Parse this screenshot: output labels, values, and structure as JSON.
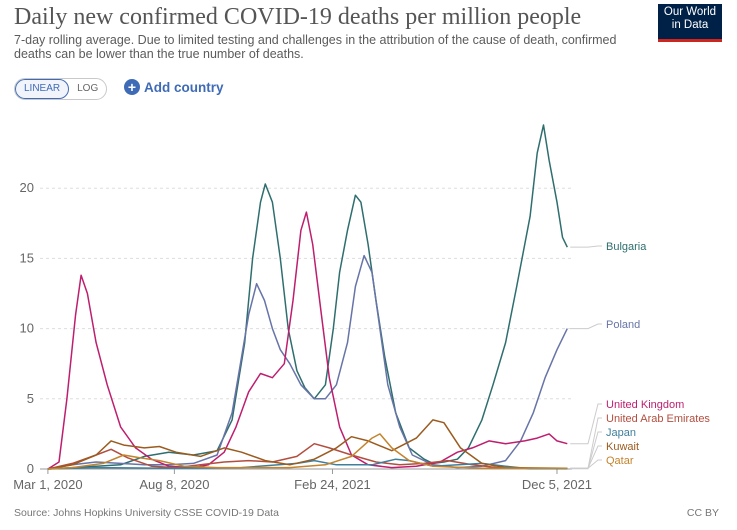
{
  "header": {
    "title": "Daily new confirmed COVID-19 deaths per million people",
    "subtitle": "7-day rolling average. Due to limited testing and challenges in the attribution of the cause of death, confirmed deaths can be lower than the true number of deaths.",
    "logo_line1": "Our World",
    "logo_line2": "in Data"
  },
  "controls": {
    "linear_label": "LINEAR",
    "log_label": "LOG",
    "add_country_label": "Add country"
  },
  "footer": {
    "source": "Source: Johns Hopkins University CSSE COVID-19 Data",
    "license": "CC BY"
  },
  "chart_data": {
    "type": "line",
    "scale": "linear",
    "grid": "horizontal dashed",
    "ylim": [
      0,
      25
    ],
    "xlim": [
      "2020-02-20",
      "2021-12-24"
    ],
    "y_ticks": [
      0,
      5,
      10,
      15,
      20
    ],
    "x_ticks": [
      {
        "date": "2020-03-01",
        "label": "Mar 1, 2020"
      },
      {
        "date": "2020-08-08",
        "label": "Aug 8, 2020"
      },
      {
        "date": "2021-02-24",
        "label": "Feb 24, 2021"
      },
      {
        "date": "2021-12-05",
        "label": "Dec 5, 2021"
      }
    ],
    "series": [
      {
        "name": "Bulgaria",
        "color": "#2f6e6e",
        "points": [
          [
            "2020-03-01",
            0
          ],
          [
            "2020-04-01",
            0.1
          ],
          [
            "2020-05-01",
            0.2
          ],
          [
            "2020-06-01",
            0.3
          ],
          [
            "2020-07-01",
            0.9
          ],
          [
            "2020-08-01",
            1.2
          ],
          [
            "2020-09-01",
            1.0
          ],
          [
            "2020-10-01",
            1.3
          ],
          [
            "2020-10-20",
            3.5
          ],
          [
            "2020-11-05",
            9
          ],
          [
            "2020-11-15",
            15
          ],
          [
            "2020-11-25",
            19
          ],
          [
            "2020-12-01",
            20.3
          ],
          [
            "2020-12-10",
            19
          ],
          [
            "2020-12-20",
            15
          ],
          [
            "2020-12-30",
            10
          ],
          [
            "2021-01-10",
            7
          ],
          [
            "2021-01-20",
            5.8
          ],
          [
            "2021-02-01",
            5.0
          ],
          [
            "2021-02-15",
            6
          ],
          [
            "2021-02-25",
            10
          ],
          [
            "2021-03-05",
            14
          ],
          [
            "2021-03-15",
            17
          ],
          [
            "2021-03-25",
            19.5
          ],
          [
            "2021-04-01",
            19
          ],
          [
            "2021-04-10",
            16
          ],
          [
            "2021-04-20",
            12
          ],
          [
            "2021-05-01",
            8
          ],
          [
            "2021-05-15",
            4
          ],
          [
            "2021-06-01",
            1.5
          ],
          [
            "2021-06-20",
            0.7
          ],
          [
            "2021-07-01",
            0.4
          ],
          [
            "2021-07-15",
            0.5
          ],
          [
            "2021-08-01",
            0.7
          ],
          [
            "2021-08-15",
            1.5
          ],
          [
            "2021-09-01",
            3.5
          ],
          [
            "2021-09-15",
            6
          ],
          [
            "2021-10-01",
            9
          ],
          [
            "2021-10-15",
            13
          ],
          [
            "2021-11-01",
            18
          ],
          [
            "2021-11-10",
            22.5
          ],
          [
            "2021-11-18",
            24.5
          ],
          [
            "2021-11-25",
            22
          ],
          [
            "2021-12-05",
            19
          ],
          [
            "2021-12-12",
            16.5
          ],
          [
            "2021-12-18",
            15.8
          ]
        ]
      },
      {
        "name": "Poland",
        "color": "#6774a8",
        "points": [
          [
            "2020-03-01",
            0
          ],
          [
            "2020-04-01",
            0.3
          ],
          [
            "2020-05-01",
            0.5
          ],
          [
            "2020-06-01",
            0.4
          ],
          [
            "2020-07-01",
            0.3
          ],
          [
            "2020-08-01",
            0.3
          ],
          [
            "2020-09-01",
            0.4
          ],
          [
            "2020-10-01",
            1.0
          ],
          [
            "2020-10-20",
            4
          ],
          [
            "2020-11-01",
            8
          ],
          [
            "2020-11-10",
            11
          ],
          [
            "2020-11-20",
            13.2
          ],
          [
            "2020-11-30",
            12
          ],
          [
            "2020-12-10",
            10
          ],
          [
            "2020-12-20",
            8.5
          ],
          [
            "2021-01-01",
            7.5
          ],
          [
            "2021-01-15",
            6
          ],
          [
            "2021-02-01",
            5
          ],
          [
            "2021-02-15",
            5
          ],
          [
            "2021-03-01",
            6
          ],
          [
            "2021-03-15",
            9
          ],
          [
            "2021-03-25",
            13
          ],
          [
            "2021-04-05",
            15.2
          ],
          [
            "2021-04-15",
            14
          ],
          [
            "2021-04-25",
            10
          ],
          [
            "2021-05-05",
            6
          ],
          [
            "2021-05-20",
            3
          ],
          [
            "2021-06-05",
            1
          ],
          [
            "2021-07-01",
            0.3
          ],
          [
            "2021-08-01",
            0.1
          ],
          [
            "2021-09-01",
            0.2
          ],
          [
            "2021-10-01",
            0.6
          ],
          [
            "2021-10-20",
            2
          ],
          [
            "2021-11-05",
            4
          ],
          [
            "2021-11-20",
            6.5
          ],
          [
            "2021-12-05",
            8.5
          ],
          [
            "2021-12-18",
            10
          ]
        ]
      },
      {
        "name": "United Kingdom",
        "color": "#be1e6e",
        "points": [
          [
            "2020-03-01",
            0
          ],
          [
            "2020-03-15",
            0.5
          ],
          [
            "2020-03-25",
            5
          ],
          [
            "2020-04-05",
            11
          ],
          [
            "2020-04-12",
            13.8
          ],
          [
            "2020-04-20",
            12.5
          ],
          [
            "2020-05-01",
            9
          ],
          [
            "2020-05-15",
            6
          ],
          [
            "2020-06-01",
            3
          ],
          [
            "2020-06-20",
            1.5
          ],
          [
            "2020-07-10",
            0.7
          ],
          [
            "2020-08-01",
            0.2
          ],
          [
            "2020-09-01",
            0.1
          ],
          [
            "2020-09-20",
            0.3
          ],
          [
            "2020-10-10",
            1.2
          ],
          [
            "2020-10-25",
            3
          ],
          [
            "2020-11-10",
            5.5
          ],
          [
            "2020-11-25",
            6.8
          ],
          [
            "2020-12-10",
            6.5
          ],
          [
            "2020-12-25",
            7.5
          ],
          [
            "2021-01-05",
            12
          ],
          [
            "2021-01-15",
            17
          ],
          [
            "2021-01-22",
            18.3
          ],
          [
            "2021-01-30",
            16
          ],
          [
            "2021-02-10",
            11
          ],
          [
            "2021-02-20",
            6.5
          ],
          [
            "2021-03-05",
            3
          ],
          [
            "2021-03-20",
            1
          ],
          [
            "2021-04-10",
            0.3
          ],
          [
            "2021-05-10",
            0.1
          ],
          [
            "2021-06-10",
            0.2
          ],
          [
            "2021-07-10",
            0.5
          ],
          [
            "2021-08-01",
            1.2
          ],
          [
            "2021-08-20",
            1.5
          ],
          [
            "2021-09-10",
            2
          ],
          [
            "2021-10-01",
            1.8
          ],
          [
            "2021-10-25",
            2
          ],
          [
            "2021-11-10",
            2.2
          ],
          [
            "2021-11-25",
            2.5
          ],
          [
            "2021-12-05",
            2
          ],
          [
            "2021-12-18",
            1.8
          ]
        ]
      },
      {
        "name": "United Arab Emirates",
        "color": "#b24e3e",
        "points": [
          [
            "2020-03-01",
            0
          ],
          [
            "2020-04-01",
            0.4
          ],
          [
            "2020-05-01",
            1.0
          ],
          [
            "2020-05-20",
            1.4
          ],
          [
            "2020-06-10",
            0.8
          ],
          [
            "2020-07-10",
            0.2
          ],
          [
            "2020-08-10",
            0.1
          ],
          [
            "2020-09-10",
            0.3
          ],
          [
            "2020-10-10",
            0.5
          ],
          [
            "2020-11-10",
            0.6
          ],
          [
            "2020-12-10",
            0.5
          ],
          [
            "2021-01-10",
            0.9
          ],
          [
            "2021-02-01",
            1.8
          ],
          [
            "2021-02-20",
            1.5
          ],
          [
            "2021-03-20",
            1.0
          ],
          [
            "2021-04-20",
            0.5
          ],
          [
            "2021-05-20",
            0.3
          ],
          [
            "2021-06-20",
            0.4
          ],
          [
            "2021-07-20",
            0.6
          ],
          [
            "2021-08-20",
            0.3
          ],
          [
            "2021-09-20",
            0.1
          ],
          [
            "2021-10-20",
            0.05
          ],
          [
            "2021-12-18",
            0.05
          ]
        ]
      },
      {
        "name": "Japan",
        "color": "#3f7f9c",
        "points": [
          [
            "2020-03-01",
            0
          ],
          [
            "2020-05-01",
            0.1
          ],
          [
            "2020-08-01",
            0.05
          ],
          [
            "2020-11-01",
            0.1
          ],
          [
            "2021-01-10",
            0.4
          ],
          [
            "2021-02-01",
            0.6
          ],
          [
            "2021-03-01",
            0.3
          ],
          [
            "2021-04-15",
            0.3
          ],
          [
            "2021-05-15",
            0.7
          ],
          [
            "2021-06-01",
            0.6
          ],
          [
            "2021-07-01",
            0.2
          ],
          [
            "2021-09-01",
            0.4
          ],
          [
            "2021-10-01",
            0.2
          ],
          [
            "2021-11-01",
            0.02
          ],
          [
            "2021-12-18",
            0.02
          ]
        ]
      },
      {
        "name": "Kuwait",
        "color": "#9a5b1e",
        "points": [
          [
            "2020-03-01",
            0
          ],
          [
            "2020-04-01",
            0.3
          ],
          [
            "2020-05-01",
            1.0
          ],
          [
            "2020-05-20",
            2.0
          ],
          [
            "2020-06-05",
            1.7
          ],
          [
            "2020-07-01",
            1.5
          ],
          [
            "2020-07-20",
            1.6
          ],
          [
            "2020-08-10",
            1.2
          ],
          [
            "2020-09-10",
            0.9
          ],
          [
            "2020-10-10",
            1.5
          ],
          [
            "2020-11-01",
            1.2
          ],
          [
            "2020-12-01",
            0.6
          ],
          [
            "2021-01-01",
            0.3
          ],
          [
            "2021-02-01",
            0.7
          ],
          [
            "2021-03-01",
            1.5
          ],
          [
            "2021-03-20",
            2.3
          ],
          [
            "2021-04-10",
            2.0
          ],
          [
            "2021-05-10",
            1.3
          ],
          [
            "2021-06-10",
            2.2
          ],
          [
            "2021-07-01",
            3.5
          ],
          [
            "2021-07-15",
            3.3
          ],
          [
            "2021-08-05",
            1.5
          ],
          [
            "2021-09-01",
            0.4
          ],
          [
            "2021-10-01",
            0.1
          ],
          [
            "2021-12-18",
            0.05
          ]
        ]
      },
      {
        "name": "Qatar",
        "color": "#c4832d",
        "points": [
          [
            "2020-03-01",
            0
          ],
          [
            "2020-04-01",
            0.1
          ],
          [
            "2020-05-10",
            0.4
          ],
          [
            "2020-06-05",
            1.0
          ],
          [
            "2020-06-25",
            0.8
          ],
          [
            "2020-07-20",
            0.6
          ],
          [
            "2020-08-20",
            0.2
          ],
          [
            "2020-10-01",
            0.1
          ],
          [
            "2021-01-01",
            0.1
          ],
          [
            "2021-02-15",
            0.3
          ],
          [
            "2021-03-20",
            0.9
          ],
          [
            "2021-04-15",
            2.2
          ],
          [
            "2021-04-25",
            2.5
          ],
          [
            "2021-05-10",
            1.5
          ],
          [
            "2021-06-01",
            0.6
          ],
          [
            "2021-07-01",
            0.2
          ],
          [
            "2021-09-01",
            0.05
          ],
          [
            "2021-12-18",
            0.05
          ]
        ]
      }
    ]
  }
}
